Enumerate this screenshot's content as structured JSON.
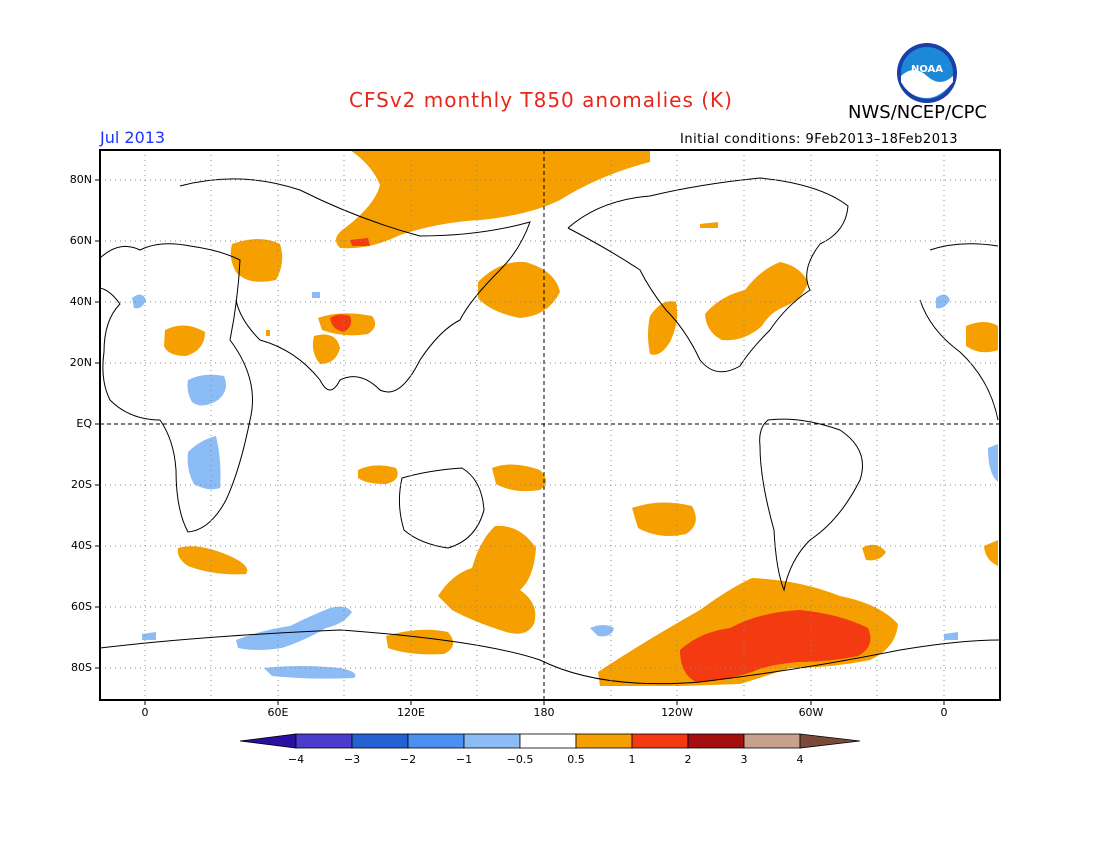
{
  "header": {
    "title": "CFSv2 monthly T850 anomalies (K)",
    "org": "NWS/NCEP/CPC",
    "month": "Jul 2013",
    "initial_conditions": "Initial conditions: 9Feb2013–18Feb2013",
    "logo_text": "NOAA"
  },
  "axes": {
    "lat_labels": [
      "80N",
      "60N",
      "40N",
      "20N",
      "EQ",
      "20S",
      "40S",
      "60S",
      "80S"
    ],
    "lon_labels": [
      "0",
      "60E",
      "120E",
      "180",
      "120W",
      "60W",
      "0"
    ]
  },
  "colorbar": {
    "labels": [
      "−4",
      "−3",
      "−2",
      "−1",
      "−0.5",
      "0.5",
      "1",
      "2",
      "3",
      "4"
    ],
    "colors": [
      "#2a0fa0",
      "#4a3ccc",
      "#2462d4",
      "#4a8ff2",
      "#8cbcf6",
      "#ffffff",
      "#f5a000",
      "#f43a10",
      "#a50f0f",
      "#c8a08c",
      "#7a4a38"
    ]
  },
  "map": {
    "legend_colors": {
      "warm_0_5_1": "#f5a000",
      "warm_1_2": "#f43a10",
      "cool_m1_m0_5": "#8cbcf6",
      "land_outline": "#000000"
    }
  }
}
